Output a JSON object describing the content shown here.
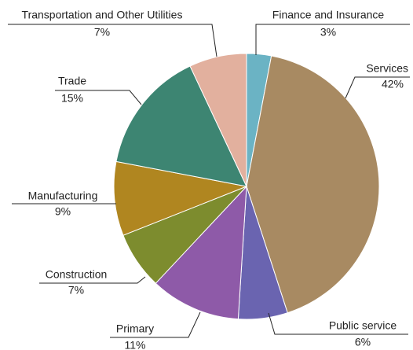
{
  "chart_data": {
    "type": "pie",
    "categories": [
      "Finance and Insurance",
      "Services",
      "Public service",
      "Primary",
      "Construction",
      "Manufacturing",
      "Trade",
      "Transportation and Other Utilities"
    ],
    "values": [
      3,
      42,
      6,
      11,
      7,
      9,
      15,
      7
    ],
    "value_labels": [
      "3%",
      "42%",
      "6%",
      "11%",
      "7%",
      "9%",
      "15%",
      "7%"
    ],
    "colors": [
      "#6bb3c4",
      "#a88a62",
      "#6a64b0",
      "#8e5aa8",
      "#7d8c2e",
      "#b08620",
      "#3d8572",
      "#e2b09e"
    ]
  }
}
